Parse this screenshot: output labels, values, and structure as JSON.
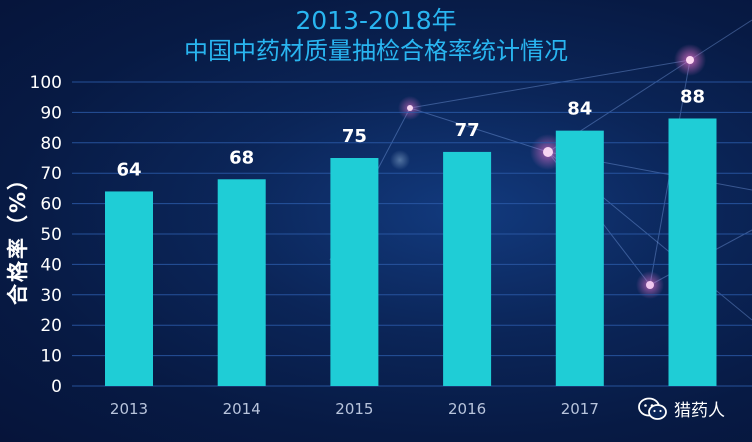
{
  "chart_data": {
    "type": "bar",
    "title_line1": "2013-2018年",
    "title_line2": "中国中药材质量抽检合格率统计情况",
    "ylabel": "合格率（%）",
    "xlabel": "",
    "categories": [
      "2013",
      "2014",
      "2015",
      "2016",
      "2017",
      ""
    ],
    "values": [
      64,
      68,
      75,
      77,
      84,
      88
    ],
    "ylim": [
      0,
      100
    ],
    "yticks": [
      0,
      10,
      20,
      30,
      40,
      50,
      60,
      70,
      80,
      90,
      100
    ],
    "grid": true,
    "legend": "none"
  },
  "watermark": {
    "text": "猎药人",
    "icon": "wechat-logo-icon"
  },
  "colors": {
    "bar": "#1fcdd6",
    "grid": "#2b5aa8",
    "title": "#29b5f0",
    "tick_text": "#ffffff",
    "category_text": "#b8c4dc",
    "value_label": "#ffffff"
  }
}
